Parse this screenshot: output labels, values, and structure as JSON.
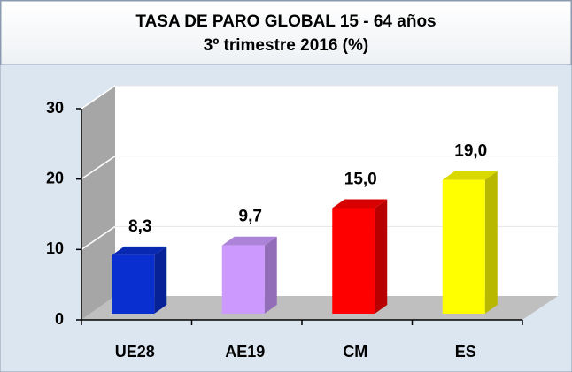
{
  "chart_data": {
    "type": "bar3d",
    "title": "TASA DE PARO GLOBAL 15 - 64 años",
    "subtitle": "3º trimestre 2016 (%)",
    "categories": [
      "UE28",
      "AE19",
      "CM",
      "ES"
    ],
    "values": [
      8.3,
      9.7,
      15.0,
      19.0
    ],
    "value_labels": [
      "8,3",
      "9,7",
      "15,0",
      "19,0"
    ],
    "colors": [
      "#0a2fd0",
      "#cc99ff",
      "#ff0000",
      "#ffff00"
    ],
    "ylim": [
      0,
      30
    ],
    "yticks": [
      0,
      10,
      20,
      30
    ],
    "grid": true
  }
}
